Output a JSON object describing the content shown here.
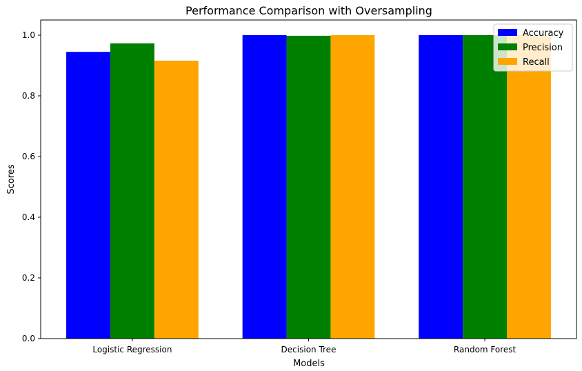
{
  "chart_data": {
    "type": "bar",
    "title": "Performance Comparison with Oversampling",
    "xlabel": "Models",
    "ylabel": "Scores",
    "categories": [
      "Logistic Regression",
      "Decision Tree",
      "Random Forest"
    ],
    "series": [
      {
        "name": "Accuracy",
        "color": "#0000ff",
        "values": [
          0.945,
          1.0,
          1.0
        ]
      },
      {
        "name": "Precision",
        "color": "#008000",
        "values": [
          0.973,
          0.998,
          1.0
        ]
      },
      {
        "name": "Recall",
        "color": "#ffa500",
        "values": [
          0.916,
          1.0,
          1.0
        ]
      }
    ],
    "ylim": [
      0,
      1.05
    ],
    "yticks": [
      "0.0",
      "0.2",
      "0.4",
      "0.6",
      "0.8",
      "1.0"
    ],
    "grid": false,
    "legend_position": "top-right"
  }
}
